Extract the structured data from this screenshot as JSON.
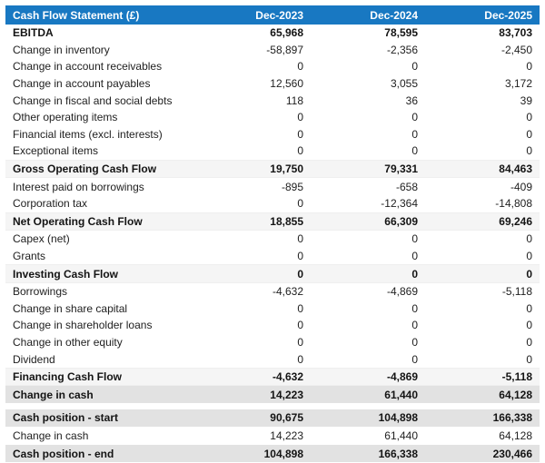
{
  "colors": {
    "header_bg": "#1878c2",
    "header_text": "#ffffff",
    "subtotal_row_bg": "#f5f5f5",
    "total_row_bg": "#e2e2e2",
    "body_text": "#212121"
  },
  "table": {
    "title": "Cash Flow Statement (£)",
    "columns": [
      "Dec-2023",
      "Dec-2024",
      "Dec-2025"
    ],
    "rows": [
      {
        "label": "EBITDA",
        "style": "bold",
        "values": [
          "65,968",
          "78,595",
          "83,703"
        ]
      },
      {
        "label": "Change in inventory",
        "style": "normal",
        "values": [
          "-58,897",
          "-2,356",
          "-2,450"
        ]
      },
      {
        "label": "Change in account receivables",
        "style": "normal",
        "values": [
          "0",
          "0",
          "0"
        ]
      },
      {
        "label": "Change in account payables",
        "style": "normal",
        "values": [
          "12,560",
          "3,055",
          "3,172"
        ]
      },
      {
        "label": "Change in fiscal and social debts",
        "style": "normal",
        "values": [
          "118",
          "36",
          "39"
        ]
      },
      {
        "label": "Other operating items",
        "style": "normal",
        "values": [
          "0",
          "0",
          "0"
        ]
      },
      {
        "label": "Financial items (excl. interests)",
        "style": "normal",
        "values": [
          "0",
          "0",
          "0"
        ]
      },
      {
        "label": "Exceptional items",
        "style": "normal",
        "values": [
          "0",
          "0",
          "0"
        ]
      },
      {
        "label": "Gross Operating Cash Flow",
        "style": "subtotal",
        "values": [
          "19,750",
          "79,331",
          "84,463"
        ]
      },
      {
        "label": "Interest paid on borrowings",
        "style": "normal",
        "values": [
          "-895",
          "-658",
          "-409"
        ]
      },
      {
        "label": "Corporation tax",
        "style": "normal",
        "values": [
          "0",
          "-12,364",
          "-14,808"
        ]
      },
      {
        "label": "Net Operating Cash Flow",
        "style": "subtotal",
        "values": [
          "18,855",
          "66,309",
          "69,246"
        ]
      },
      {
        "label": "Capex (net)",
        "style": "normal",
        "values": [
          "0",
          "0",
          "0"
        ]
      },
      {
        "label": "Grants",
        "style": "normal",
        "values": [
          "0",
          "0",
          "0"
        ]
      },
      {
        "label": "Investing Cash Flow",
        "style": "subtotal",
        "values": [
          "0",
          "0",
          "0"
        ]
      },
      {
        "label": "Borrowings",
        "style": "normal",
        "values": [
          "-4,632",
          "-4,869",
          "-5,118"
        ]
      },
      {
        "label": "Change in share capital",
        "style": "normal",
        "values": [
          "0",
          "0",
          "0"
        ]
      },
      {
        "label": "Change in shareholder loans",
        "style": "normal",
        "values": [
          "0",
          "0",
          "0"
        ]
      },
      {
        "label": "Change in other equity",
        "style": "normal",
        "values": [
          "0",
          "0",
          "0"
        ]
      },
      {
        "label": "Dividend",
        "style": "normal",
        "values": [
          "0",
          "0",
          "0"
        ]
      },
      {
        "label": "Financing Cash Flow",
        "style": "subtotal",
        "values": [
          "-4,632",
          "-4,869",
          "-5,118"
        ]
      },
      {
        "label": "Change in cash",
        "style": "total",
        "values": [
          "14,223",
          "61,440",
          "64,128"
        ]
      },
      {
        "label": "",
        "style": "spacer",
        "values": []
      },
      {
        "label": "Cash position - start",
        "style": "total",
        "values": [
          "90,675",
          "104,898",
          "166,338"
        ]
      },
      {
        "label": "Change in cash",
        "style": "normal",
        "values": [
          "14,223",
          "61,440",
          "64,128"
        ]
      },
      {
        "label": "Cash position - end",
        "style": "total",
        "values": [
          "104,898",
          "166,338",
          "230,466"
        ]
      }
    ]
  }
}
